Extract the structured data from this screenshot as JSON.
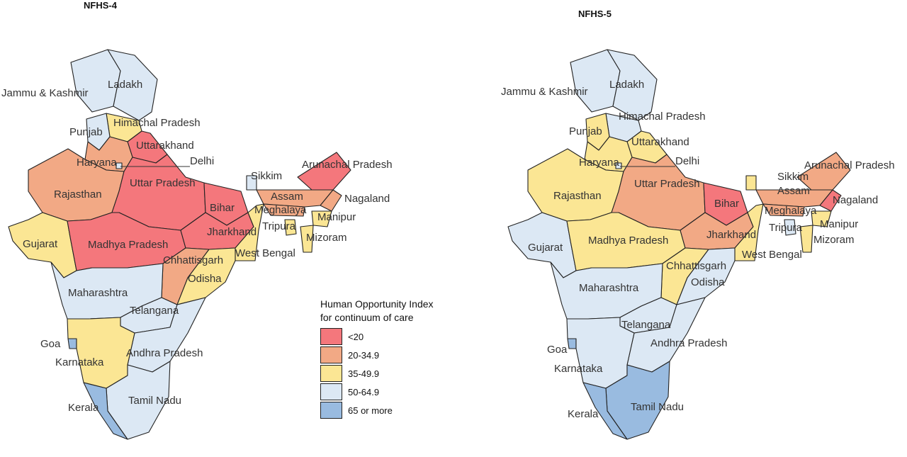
{
  "maps": [
    {
      "title": "NFHS-4",
      "regions": {
        "jk": "Jammu & Kashmir",
        "ladakh": "Ladakh",
        "hp": "Himachal Pradesh",
        "punjab": "Punjab",
        "uk": "Uttarakhand",
        "haryana": "Haryana",
        "delhi": "Delhi",
        "raj": "Rajasthan",
        "up": "Uttar Pradesh",
        "bihar": "Bihar",
        "sikkim": "Sikkim",
        "arunachal": "Arunachal Pradesh",
        "assam": "Assam",
        "nagaland": "Nagaland",
        "meghalaya": "Meghalaya",
        "manipur": "Manipur",
        "tripura": "Tripura",
        "mizoram": "Mizoram",
        "gujarat": "Gujarat",
        "mp": "Madhya Pradesh",
        "jharkhand": "Jharkhand",
        "wb": "West Bengal",
        "chh": "Chhattisgarh",
        "odisha": "Odisha",
        "maha": "Maharashtra",
        "telangana": "Telangana",
        "goa": "Goa",
        "ap": "Andhra Pradesh",
        "karnataka": "Karnataka",
        "tn": "Tamil Nadu",
        "kerala": "Kerala"
      },
      "categories": {
        "jk": "50-64.9",
        "ladakh": "50-64.9",
        "hp": "35-49.9",
        "punjab": "50-64.9",
        "uk": "<20",
        "haryana": "20-34.9",
        "delhi": "50-64.9",
        "raj": "20-34.9",
        "up": "<20",
        "bihar": "<20",
        "sikkim": "50-64.9",
        "arunachal": "<20",
        "assam": "20-34.9",
        "nagaland": "20-34.9",
        "meghalaya": "20-34.9",
        "manipur": "35-49.9",
        "tripura": "35-49.9",
        "mizoram": "35-49.9",
        "gujarat": "35-49.9",
        "mp": "<20",
        "jharkhand": "<20",
        "wb": "35-49.9",
        "chh": "20-34.9",
        "odisha": "35-49.9",
        "maha": "50-64.9",
        "telangana": "50-64.9",
        "goa": "65 or more",
        "ap": "50-64.9",
        "karnataka": "35-49.9",
        "tn": "50-64.9",
        "kerala": "65 or more"
      }
    },
    {
      "title": "NFHS-5",
      "regions": {
        "jk": "Jammu & Kashmir",
        "ladakh": "Ladakh",
        "hp": "Himachal Pradesh",
        "punjab": "Punjab",
        "uk": "Uttarakhand",
        "haryana": "Haryana",
        "delhi": "Delhi",
        "raj": "Rajasthan",
        "up": "Uttar Pradesh",
        "bihar": "Bihar",
        "sikkim": "Sikkim",
        "arunachal": "Arunachal Pradesh",
        "assam": "Assam",
        "nagaland": "Nagaland",
        "meghalaya": "Meghalaya",
        "manipur": "Manipur",
        "tripura": "Tripura",
        "mizoram": "Mizoram",
        "gujarat": "Gujarat",
        "mp": "Madhya Pradesh",
        "jharkhand": "Jharkhand",
        "wb": "West Bengal",
        "chh": "Chhattisgarh",
        "odisha": "Odisha",
        "maha": "Maharashtra",
        "telangana": "Telangana",
        "goa": "Goa",
        "ap": "Andhra Pradesh",
        "karnataka": "Karnataka",
        "tn": "Tamil Nadu",
        "kerala": "Kerala"
      },
      "categories": {
        "jk": "50-64.9",
        "ladakh": "50-64.9",
        "hp": "50-64.9",
        "punjab": "35-49.9",
        "uk": "35-49.9",
        "haryana": "35-49.9",
        "delhi": "50-64.9",
        "raj": "35-49.9",
        "up": "20-34.9",
        "bihar": "<20",
        "sikkim": "35-49.9",
        "arunachal": "20-34.9",
        "assam": "20-34.9",
        "nagaland": "<20",
        "meghalaya": "20-34.9",
        "manipur": "35-49.9",
        "tripura": "50-64.9",
        "mizoram": "35-49.9",
        "gujarat": "50-64.9",
        "mp": "35-49.9",
        "jharkhand": "20-34.9",
        "wb": "35-49.9",
        "chh": "35-49.9",
        "odisha": "50-64.9",
        "maha": "50-64.9",
        "telangana": "50-64.9",
        "goa": "65 or more",
        "ap": "50-64.9",
        "karnataka": "50-64.9",
        "tn": "65 or more",
        "kerala": "65 or more"
      }
    }
  ],
  "legend": {
    "title_line1": "Human Opportunity Index",
    "title_line2": "for continuum of care",
    "items": [
      {
        "label": "<20",
        "color": "#f4777c"
      },
      {
        "label": "20-34.9",
        "color": "#f2a985"
      },
      {
        "label": "35-49.9",
        "color": "#fbe694"
      },
      {
        "label": "50-64.9",
        "color": "#dce8f4"
      },
      {
        "label": "65 or more",
        "color": "#99bbe0"
      }
    ]
  }
}
